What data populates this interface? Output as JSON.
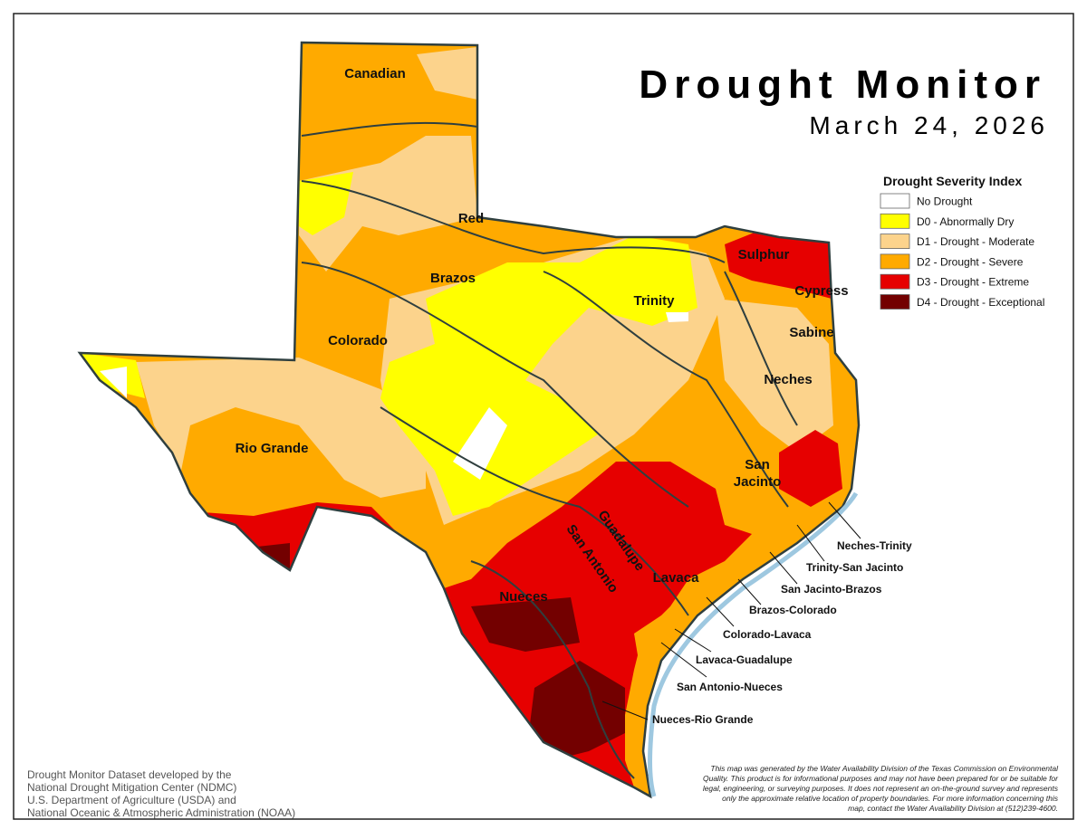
{
  "title": "Drought Monitor",
  "date": "March 24, 2026",
  "legend": {
    "title": "Drought Severity Index",
    "items": [
      {
        "label": "No Drought",
        "color": "#ffffff"
      },
      {
        "label": "D0 - Abnormally Dry",
        "color": "#ffff00"
      },
      {
        "label": "D1 - Drought - Moderate",
        "color": "#fcd38c"
      },
      {
        "label": "D2 - Drought - Severe",
        "color": "#ffaa00"
      },
      {
        "label": "D3 - Drought - Extreme",
        "color": "#e60000"
      },
      {
        "label": "D4 - Drought - Exceptional",
        "color": "#730000"
      }
    ]
  },
  "basins": [
    "Canadian",
    "Red",
    "Brazos",
    "Trinity",
    "Sulphur",
    "Cypress",
    "Sabine",
    "Neches",
    "Colorado",
    [
      "San",
      "Jacinto"
    ],
    "Rio Grande",
    "Guadalupe",
    "San Antonio",
    "Lavaca",
    "Nueces"
  ],
  "coastal_basins": [
    "Neches-Trinity",
    "Trinity-San Jacinto",
    "San Jacinto-Brazos",
    "Brazos-Colorado",
    "Colorado-Lavaca",
    "Lavaca-Guadalupe",
    "San Antonio-Nueces",
    "Nueces-Rio Grande"
  ],
  "credits": [
    "Drought Monitor Dataset developed by the",
    "National Drought Mitigation Center (NDMC)",
    "U.S. Department of Agriculture (USDA) and",
    "National Oceanic & Atmospheric Administration (NOAA)"
  ],
  "disclaimer": [
    "This map was generated by the Water Availability Division of the Texas Commission on Environmental",
    "Quality. This product is for informational purposes and may not have been prepared for or be suitable for",
    "legal, engineering, or surveying purposes. It does not represent an on-the-ground survey and represents",
    "only the approximate relative location of property boundaries. For more information concerning this",
    "map, contact the Water Availability Division at (512)239-4600."
  ]
}
